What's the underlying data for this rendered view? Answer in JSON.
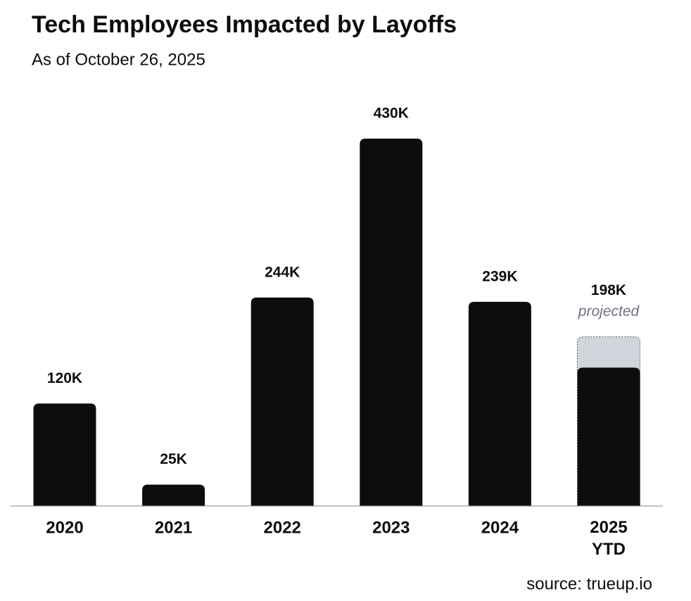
{
  "chart_data": {
    "type": "bar",
    "title": "Tech Employees Impacted by Layoffs",
    "subtitle": "As of October 26, 2025",
    "source": "source: trueup.io",
    "categories": [
      "2020",
      "2021",
      "2022",
      "2023",
      "2024",
      "2025 YTD"
    ],
    "values": [
      120000,
      25000,
      244000,
      430000,
      239000,
      162000
    ],
    "value_labels": [
      "120K",
      "25K",
      "244K",
      "430K",
      "239K",
      null
    ],
    "color": "#0d0d0d",
    "projected": {
      "note": "projected",
      "values": [
        null,
        null,
        null,
        null,
        null,
        198000
      ],
      "value_labels": [
        null,
        null,
        null,
        null,
        null,
        "198K"
      ],
      "color": "#d1d5db"
    }
  }
}
